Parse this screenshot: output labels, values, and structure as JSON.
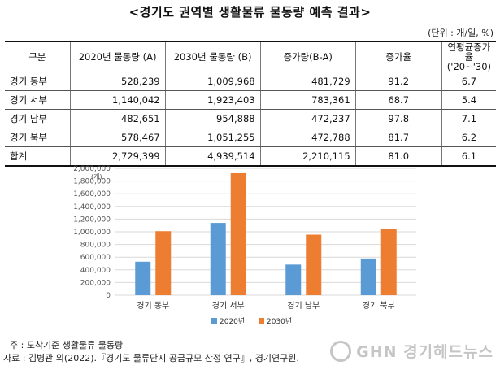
{
  "title": "<경기도 권역별 생활물류 물동량 예측 결과>",
  "unit_note": "(단위 : 개/일, %)",
  "table": {
    "headers": [
      "구분",
      "2020년 물동량 (A)",
      "2030년 물동량 (B)",
      "증가량(B-A)",
      "증가율",
      "연평균증가율",
      "('20~'30)"
    ],
    "rows": [
      [
        "경기 동부",
        "528,239",
        "1,009,968",
        "481,729",
        "91.2",
        "6.7"
      ],
      [
        "경기 서부",
        "1,140,042",
        "1,923,403",
        "783,361",
        "68.7",
        "5.4"
      ],
      [
        "경기 남부",
        "482,651",
        "954,888",
        "472,237",
        "97.8",
        "7.1"
      ],
      [
        "경기 북부",
        "578,467",
        "1,051,255",
        "472,788",
        "81.7",
        "6.2"
      ],
      [
        "합계",
        "2,729,399",
        "4,939,514",
        "2,210,115",
        "81.0",
        "6.1"
      ]
    ]
  },
  "chart_data": {
    "type": "bar",
    "categories": [
      "경기 동부",
      "경기 서부",
      "경기 남부",
      "경기 북부"
    ],
    "series": [
      {
        "name": "2020년",
        "values": [
          528239,
          1140042,
          482651,
          578467
        ],
        "color": "#5b9bd5"
      },
      {
        "name": "2030년",
        "values": [
          1009968,
          1923403,
          954888,
          1051255
        ],
        "color": "#ed7d31"
      }
    ],
    "ylabel": "(개)",
    "ylim": [
      0,
      2000000
    ],
    "yticks": [
      "0",
      "200,000",
      "400,000",
      "600,000",
      "800,000",
      "1,000,000",
      "1,200,000",
      "1,400,000",
      "1,600,000",
      "1,800,000",
      "2,000,000"
    ],
    "grid": true,
    "legend": "bottom"
  },
  "notes": {
    "note1": "주 : 도착기준 생활물류 물동량",
    "note2": "자료 : 김병관 외(2022).『경기도 물류단지 공급규모 산정 연구』, 경기연구원."
  },
  "watermark": "GHN 경기헤드뉴스"
}
